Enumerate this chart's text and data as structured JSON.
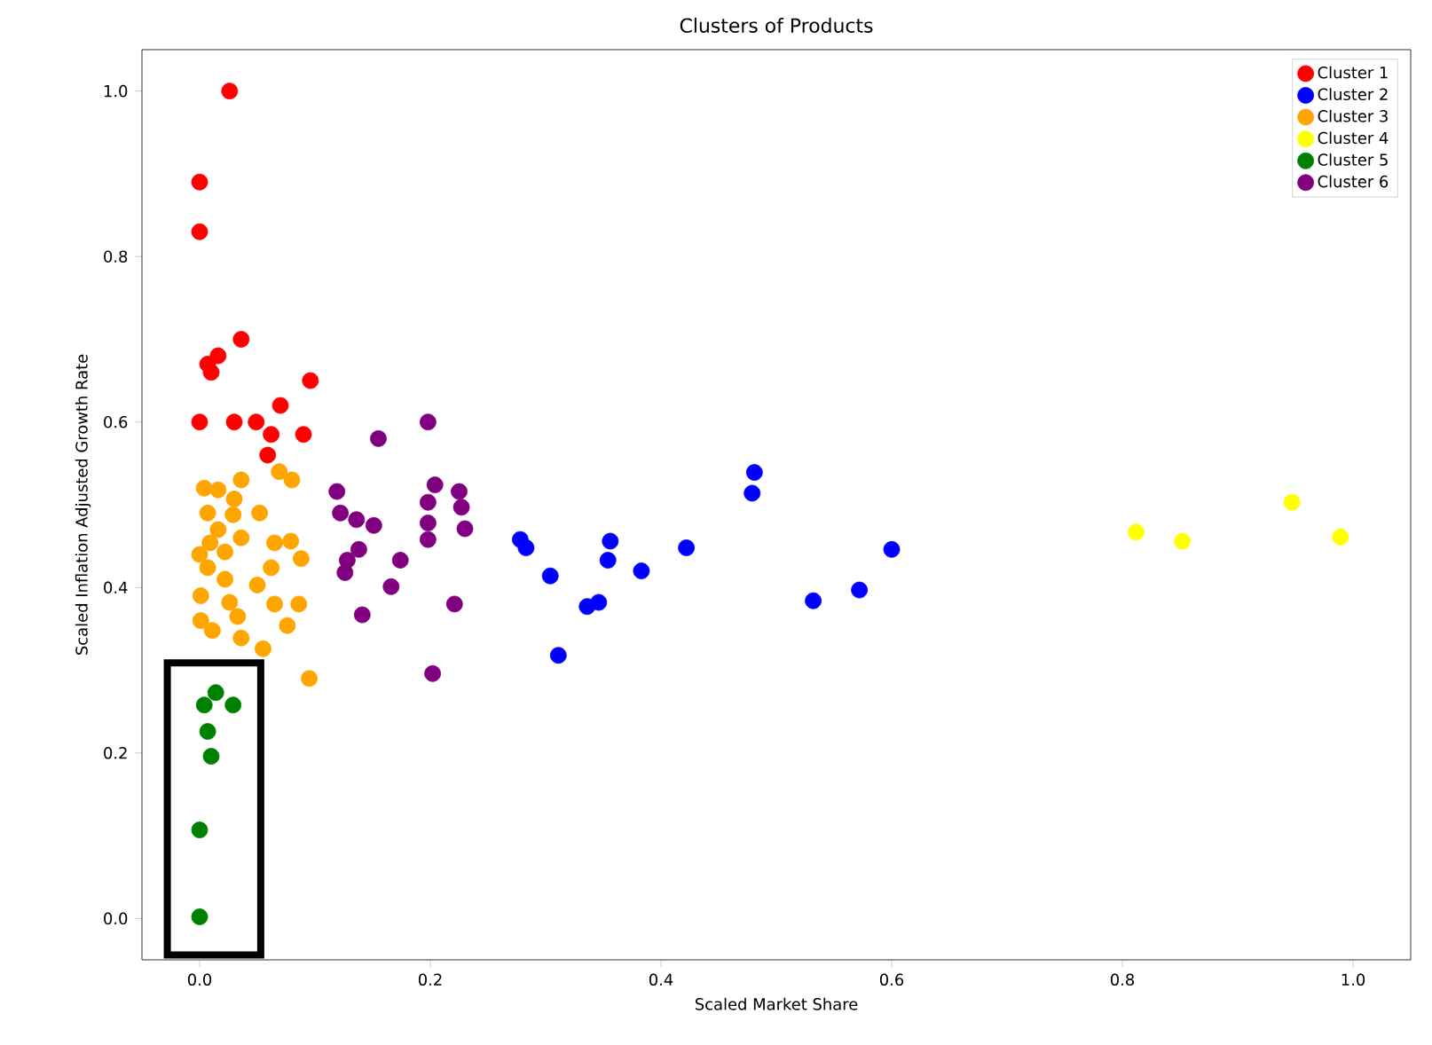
{
  "chart_data": {
    "type": "scatter",
    "title": "Clusters of Products",
    "xlabel": "Scaled Market Share",
    "ylabel": "Scaled Inflation Adjusted Growth Rate",
    "xlim": [
      -0.05,
      1.05
    ],
    "ylim": [
      -0.05,
      1.05
    ],
    "xticks": [
      {
        "value": 0,
        "label": "0.0"
      },
      {
        "value": 0.2,
        "label": "0.2"
      },
      {
        "value": 0.4,
        "label": "0.4"
      },
      {
        "value": 0.6,
        "label": "0.6"
      },
      {
        "value": 0.8,
        "label": "0.8"
      },
      {
        "value": 1,
        "label": "1.0"
      }
    ],
    "yticks": [
      {
        "value": 0,
        "label": "0.0"
      },
      {
        "value": 0.2,
        "label": "0.2"
      },
      {
        "value": 0.4,
        "label": "0.4"
      },
      {
        "value": 0.6,
        "label": "0.6"
      },
      {
        "value": 0.8,
        "label": "0.8"
      },
      {
        "value": 1,
        "label": "1.0"
      }
    ],
    "legend": "top right",
    "marker": "circle",
    "grid": false,
    "series": [
      {
        "name": "Cluster 1",
        "color": "#ff0000",
        "x": [
          0.026,
          0.0,
          0.0,
          0.036,
          0.016,
          0.007,
          0.01,
          0.096,
          0.0,
          0.03,
          0.049,
          0.07,
          0.062,
          0.09,
          0.059
        ],
        "values": [
          1.0,
          0.89,
          0.83,
          0.7,
          0.68,
          0.67,
          0.66,
          0.65,
          0.6,
          0.6,
          0.6,
          0.62,
          0.585,
          0.585,
          0.56
        ]
      },
      {
        "name": "Cluster 2",
        "color": "#0000ff",
        "x": [
          0.278,
          0.283,
          0.304,
          0.336,
          0.346,
          0.311,
          0.356,
          0.354,
          0.383,
          0.422,
          0.481,
          0.479,
          0.532,
          0.572,
          0.6
        ],
        "values": [
          0.458,
          0.448,
          0.414,
          0.377,
          0.382,
          0.318,
          0.456,
          0.433,
          0.42,
          0.448,
          0.539,
          0.514,
          0.384,
          0.397,
          0.446
        ]
      },
      {
        "name": "Cluster 3",
        "color": "#ffa500",
        "x": [
          0.004,
          0.036,
          0.069,
          0.08,
          0.007,
          0.03,
          0.052,
          0.029,
          0.016,
          0.009,
          0.036,
          0.065,
          0.079,
          0.088,
          0.062,
          0.007,
          0.022,
          0.05,
          0.001,
          0.026,
          0.065,
          0.086,
          0.001,
          0.033,
          0.076,
          0.011,
          0.036,
          0.055,
          0.095,
          0.0,
          0.022,
          0.016
        ],
        "values": [
          0.52,
          0.53,
          0.54,
          0.53,
          0.49,
          0.507,
          0.49,
          0.488,
          0.47,
          0.454,
          0.46,
          0.454,
          0.456,
          0.435,
          0.424,
          0.424,
          0.41,
          0.403,
          0.39,
          0.382,
          0.38,
          0.38,
          0.36,
          0.365,
          0.354,
          0.348,
          0.339,
          0.326,
          0.29,
          0.44,
          0.443,
          0.518
        ]
      },
      {
        "name": "Cluster 4",
        "color": "#ffff00",
        "x": [
          0.812,
          0.852,
          0.947,
          0.989
        ],
        "values": [
          0.467,
          0.456,
          0.503,
          0.461
        ]
      },
      {
        "name": "Cluster 5",
        "color": "#008000",
        "x": [
          0.014,
          0.004,
          0.029,
          0.007,
          0.01,
          0.0,
          0.0
        ],
        "values": [
          0.273,
          0.258,
          0.258,
          0.226,
          0.196,
          0.107,
          0.002
        ]
      },
      {
        "name": "Cluster 6",
        "color": "#800080",
        "x": [
          0.155,
          0.198,
          0.119,
          0.122,
          0.136,
          0.151,
          0.204,
          0.198,
          0.198,
          0.198,
          0.225,
          0.227,
          0.23,
          0.138,
          0.128,
          0.126,
          0.174,
          0.166,
          0.141,
          0.221,
          0.202
        ],
        "values": [
          0.58,
          0.6,
          0.516,
          0.49,
          0.482,
          0.475,
          0.524,
          0.503,
          0.478,
          0.458,
          0.516,
          0.497,
          0.471,
          0.446,
          0.433,
          0.418,
          0.433,
          0.401,
          0.367,
          0.38,
          0.296
        ]
      }
    ]
  }
}
